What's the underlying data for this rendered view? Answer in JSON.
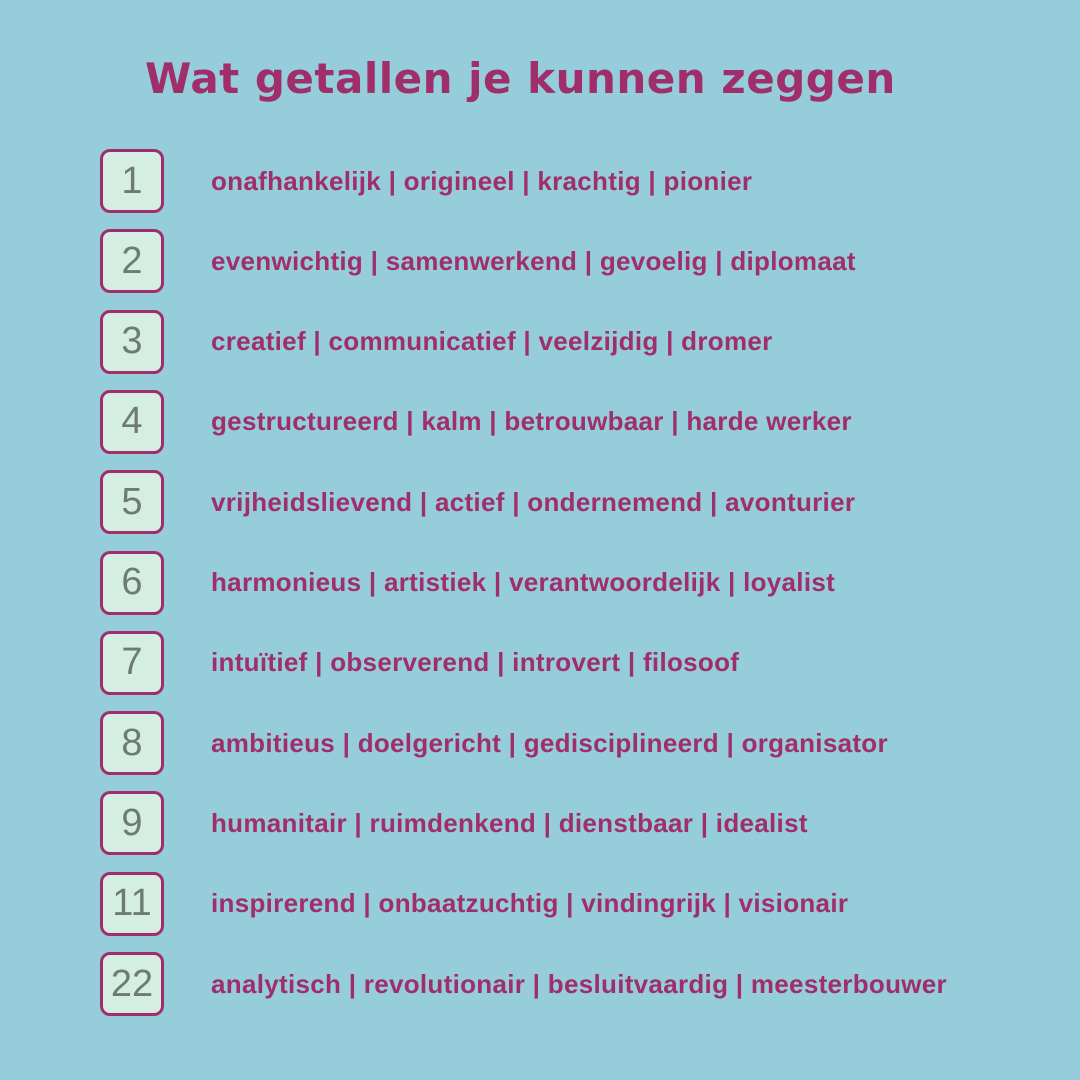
{
  "title": "Wat getallen je kunnen zeggen",
  "colors": {
    "background": "#95CDDB",
    "accent": "#A02E6B",
    "box_fill": "#D5EEE3",
    "number": "#6E7B72"
  },
  "rows": [
    {
      "number": "1",
      "traits": "onafhankelijk | origineel | krachtig | pionier"
    },
    {
      "number": "2",
      "traits": "evenwichtig | samenwerkend | gevoelig | diplomaat"
    },
    {
      "number": "3",
      "traits": "creatief | communicatief | veelzijdig | dromer"
    },
    {
      "number": "4",
      "traits": "gestructureerd | kalm | betrouwbaar | harde werker"
    },
    {
      "number": "5",
      "traits": "vrijheidslievend | actief | ondernemend | avonturier"
    },
    {
      "number": "6",
      "traits": "harmonieus | artistiek | verantwoordelijk | loyalist"
    },
    {
      "number": "7",
      "traits": "intuïtief | observerend | introvert | filosoof"
    },
    {
      "number": "8",
      "traits": "ambitieus | doelgericht | gedisciplineerd | organisator"
    },
    {
      "number": "9",
      "traits": "humanitair | ruimdenkend | dienstbaar | idealist"
    },
    {
      "number": "11",
      "traits": "inspirerend | onbaatzuchtig | vindingrijk | visionair"
    },
    {
      "number": "22",
      "traits": "analytisch | revolutionair | besluitvaardig | meesterbouwer"
    }
  ]
}
